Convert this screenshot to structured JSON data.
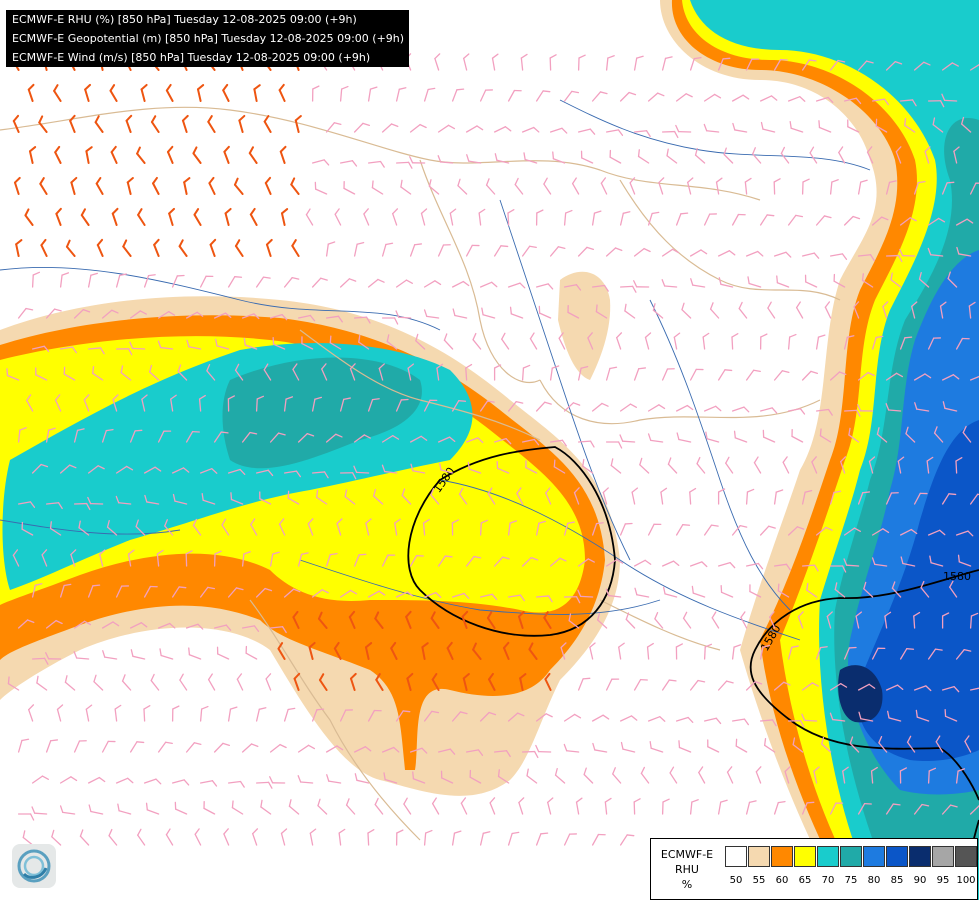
{
  "title_lines": [
    "ECMWF-E RHU (%) [850 hPa] Tuesday 12-08-2025 09:00 (+9h)",
    "ECMWF-E Geopotential (m) [850 hPa] Tuesday 12-08-2025 09:00 (+9h)",
    "ECMWF-E Wind (m/s) [850 hPa] Tuesday 12-08-2025 09:00 (+9h)"
  ],
  "legend": {
    "title_lines": [
      "ECMWF-E",
      "RHU",
      "%"
    ],
    "ticks": [
      "50",
      "55",
      "60",
      "65",
      "70",
      "75",
      "80",
      "85",
      "90",
      "95",
      "100"
    ],
    "colors": [
      "#ffffff",
      "#f5d9b0",
      "#ff8800",
      "#ffff00",
      "#19cccc",
      "#20aaa8",
      "#1e7be0",
      "#0b56c8",
      "#0a2d6e",
      "#a6a6a6",
      "#555555"
    ]
  },
  "contour_labels": [
    "1580",
    "1580",
    "1580"
  ],
  "logo_icon": "ecmwf-swirl-icon"
}
